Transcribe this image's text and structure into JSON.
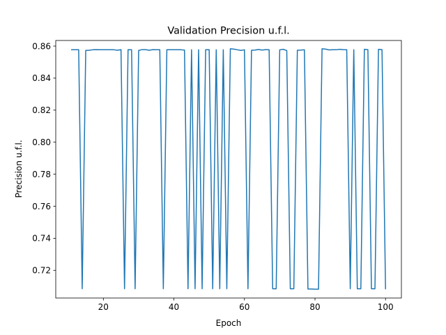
{
  "chart_data": {
    "type": "line",
    "title": "Validation Precision u.f.l.",
    "xlabel": "Epoch",
    "ylabel": "Precision u.f.l.",
    "xlim": [
      6.5,
      104.5
    ],
    "ylim": [
      0.7027,
      0.8635
    ],
    "xticks": [
      20,
      40,
      60,
      80,
      100
    ],
    "yticks": [
      0.72,
      0.74,
      0.76,
      0.78,
      0.8,
      0.82,
      0.84,
      0.86
    ],
    "ytick_labels": [
      "0.72",
      "0.74",
      "0.76",
      "0.78",
      "0.80",
      "0.82",
      "0.84",
      "0.86"
    ],
    "grid": false,
    "line_color": "#1f77b4",
    "series": [
      {
        "x": [
          11,
          12,
          13,
          14,
          15,
          16,
          17,
          18,
          19,
          20,
          21,
          22,
          23,
          24,
          25,
          26,
          27,
          28,
          29,
          30,
          31,
          32,
          33,
          34,
          35,
          36,
          37,
          38,
          39,
          40,
          41,
          42,
          43,
          44,
          45,
          46,
          47,
          48,
          49,
          50,
          51,
          52,
          53,
          54,
          55,
          56,
          57,
          58,
          59,
          60,
          61,
          62,
          63,
          64,
          65,
          66,
          67,
          68,
          69,
          70,
          71,
          72,
          73,
          74,
          75,
          76,
          77,
          78,
          79,
          80,
          81,
          82,
          83,
          84,
          85,
          86,
          87,
          88,
          89,
          90,
          91,
          92,
          93,
          94,
          95,
          96,
          97,
          98,
          99,
          100
        ],
        "y": [
          0.8577,
          0.8577,
          0.8577,
          0.7085,
          0.8573,
          0.8574,
          0.8577,
          0.8578,
          0.8577,
          0.8577,
          0.8577,
          0.8577,
          0.8577,
          0.8574,
          0.8578,
          0.7085,
          0.8577,
          0.8577,
          0.7085,
          0.8573,
          0.8578,
          0.8578,
          0.8574,
          0.8578,
          0.8577,
          0.8577,
          0.7085,
          0.8577,
          0.8577,
          0.8577,
          0.8577,
          0.8577,
          0.8575,
          0.7085,
          0.8577,
          0.7085,
          0.8577,
          0.7085,
          0.8577,
          0.8577,
          0.7085,
          0.8577,
          0.7085,
          0.8577,
          0.7085,
          0.8583,
          0.8581,
          0.8577,
          0.8573,
          0.8577,
          0.7085,
          0.8574,
          0.8575,
          0.8579,
          0.8575,
          0.8578,
          0.8577,
          0.7085,
          0.7085,
          0.8577,
          0.858,
          0.8572,
          0.7085,
          0.7085,
          0.8574,
          0.8575,
          0.8577,
          0.7083,
          0.7083,
          0.7082,
          0.7082,
          0.8583,
          0.8581,
          0.8576,
          0.8577,
          0.8577,
          0.858,
          0.8578,
          0.8577,
          0.7085,
          0.8577,
          0.7085,
          0.7085,
          0.858,
          0.8578,
          0.7085,
          0.7085,
          0.858,
          0.8578,
          0.7085
        ]
      }
    ]
  }
}
